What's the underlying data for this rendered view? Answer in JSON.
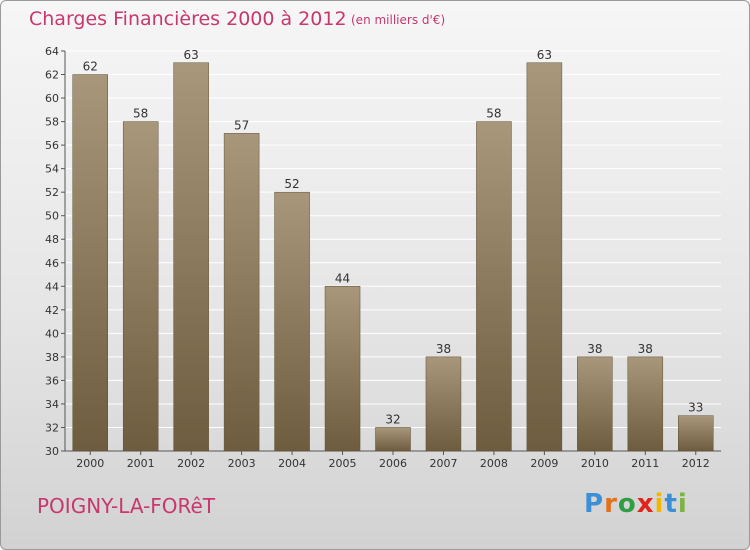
{
  "header": {
    "title": "Charges Financières 2000 à 2012",
    "subtitle": "(en milliers d'€)"
  },
  "footer": {
    "commune": "POIGNY-LA-FORêT",
    "logo_text": "Proxiti"
  },
  "colors": {
    "title": "#c8376e",
    "bar_light": "#a8977a",
    "bar_dark": "#6e5c3f",
    "grid": "#ffffff"
  },
  "chart_data": {
    "type": "bar",
    "title": "Charges Financières 2000 à 2012",
    "subtitle": "(en milliers d'€)",
    "xlabel": "",
    "ylabel": "",
    "categories": [
      "2000",
      "2001",
      "2002",
      "2003",
      "2004",
      "2005",
      "2006",
      "2007",
      "2008",
      "2009",
      "2010",
      "2011",
      "2012"
    ],
    "values": [
      62,
      58,
      63,
      57,
      52,
      44,
      32,
      38,
      58,
      63,
      38,
      38,
      33
    ],
    "ylim": [
      30,
      64
    ],
    "yticks": [
      30,
      32,
      34,
      36,
      38,
      40,
      42,
      44,
      46,
      48,
      50,
      52,
      54,
      56,
      58,
      60,
      62,
      64
    ],
    "grid": true,
    "legend": "none",
    "data_labels": true
  }
}
